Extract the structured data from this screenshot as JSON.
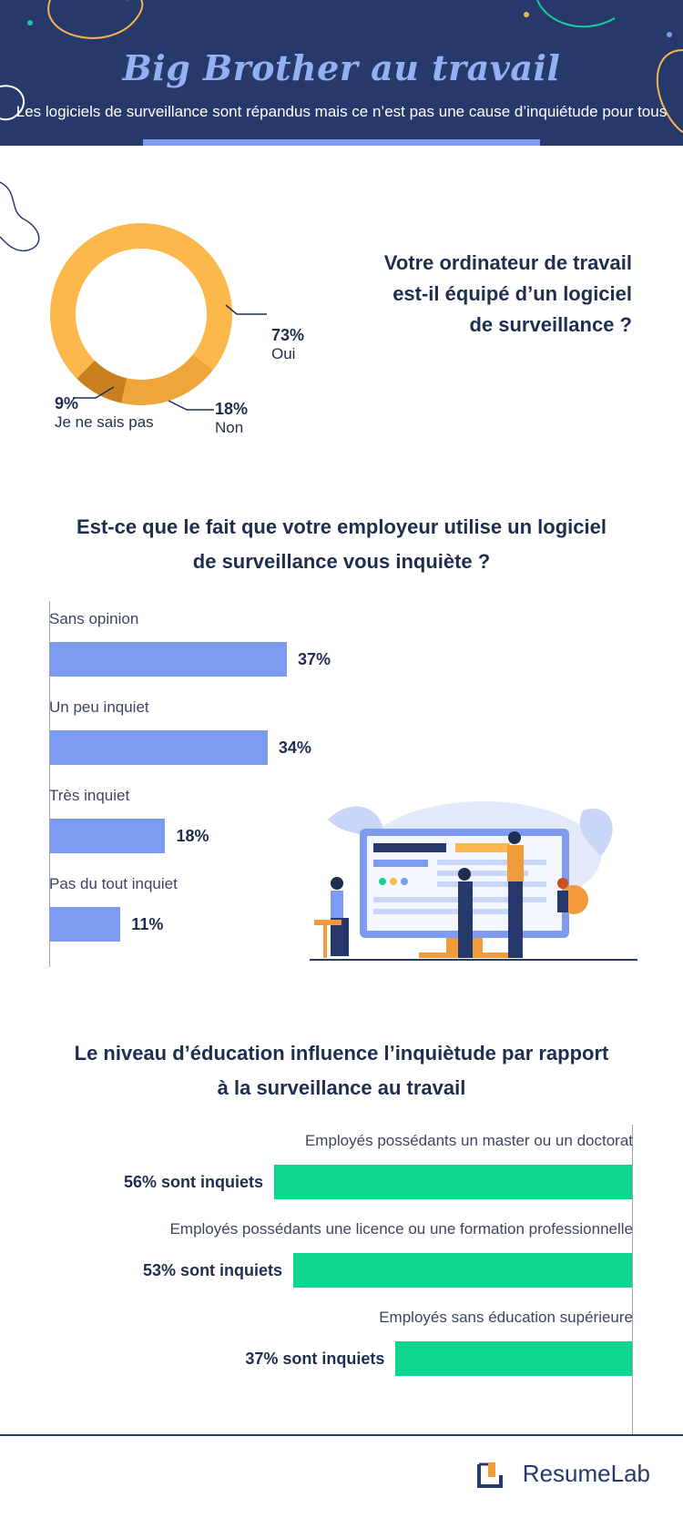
{
  "header": {
    "title": "Big Brother au travail",
    "subtitle": "Les logiciels de surveillance sont répandus mais ce n’est pas une cause d’inquiétude pour tous"
  },
  "section1": {
    "question_lines": [
      "Votre ordinateur de travail",
      "est-il équipé d’un logiciel",
      "de surveillance ?"
    ]
  },
  "section2": {
    "question_lines": [
      "Est-ce que le fait que votre employeur utilise un logiciel",
      "de surveillance vous inquiète ?"
    ]
  },
  "section3": {
    "question_lines": [
      "Le niveau d’éducation influence l’inquiètude par rapport",
      "à la surveillance au travail"
    ]
  },
  "chart_data": [
    {
      "type": "pie",
      "donut": true,
      "categories": [
        "Oui",
        "Non",
        "Je ne sais pas"
      ],
      "values": [
        73,
        18,
        9
      ],
      "value_labels": [
        "73%",
        "18%",
        "9%"
      ],
      "colors": [
        "#fcb84a",
        "#efa53a",
        "#c8801e"
      ]
    },
    {
      "type": "bar",
      "orientation": "horizontal",
      "categories": [
        "Sans opinion",
        "Un peu inquiet",
        "Très inquiet",
        "Pas du tout inquiet"
      ],
      "values": [
        37,
        34,
        18,
        11
      ],
      "value_labels": [
        "37%",
        "34%",
        "18%",
        "11%"
      ],
      "color": "#7d9cf0"
    },
    {
      "type": "bar",
      "orientation": "horizontal",
      "categories": [
        "Employés possédants un master ou un doctorat",
        "Employés possédants une licence ou une formation professionnelle",
        "Employés sans éducation supérieure"
      ],
      "values": [
        56,
        53,
        37
      ],
      "value_labels": [
        "56% sont inquiets",
        "53% sont inquiets",
        "37% sont inquiets"
      ],
      "color": "#0fd68f"
    }
  ],
  "footer": {
    "brand": "ResumeLab"
  },
  "colors": {
    "navy": "#27386a",
    "periwinkle": "#7d9cf0",
    "green": "#0fd68f",
    "orange": "#fcb84a"
  }
}
